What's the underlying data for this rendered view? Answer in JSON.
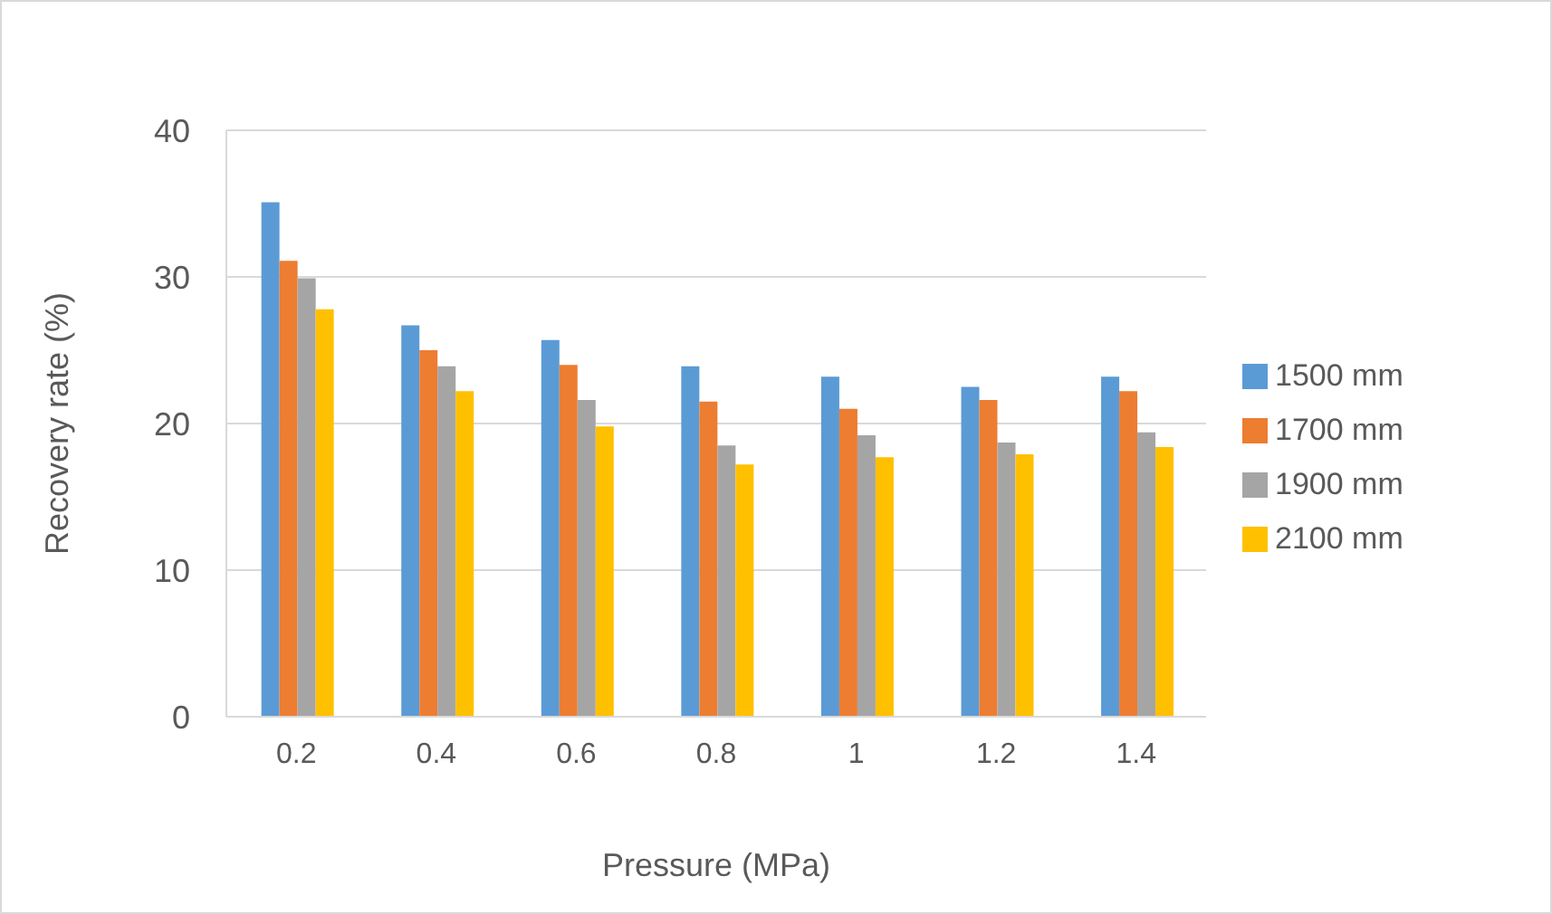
{
  "chart_data": {
    "type": "bar",
    "xlabel": "Pressure (MPa)",
    "ylabel": "Recovery rate (%)",
    "categories": [
      "0.2",
      "0.4",
      "0.6",
      "0.8",
      "1",
      "1.2",
      "1.4"
    ],
    "series": [
      {
        "name": "1500 mm",
        "color": "#5b9bd5",
        "values": [
          35.1,
          26.7,
          25.7,
          23.9,
          23.2,
          22.5,
          23.2
        ]
      },
      {
        "name": "1700 mm",
        "color": "#ed7d31",
        "values": [
          31.1,
          25.0,
          24.0,
          21.5,
          21.0,
          21.6,
          22.2
        ]
      },
      {
        "name": "1900 mm",
        "color": "#a5a5a5",
        "values": [
          29.9,
          23.9,
          21.6,
          18.5,
          19.2,
          18.7,
          19.4
        ]
      },
      {
        "name": "2100 mm",
        "color": "#ffc000",
        "values": [
          27.8,
          22.2,
          19.8,
          17.2,
          17.7,
          17.9,
          18.4
        ]
      }
    ],
    "ylim": [
      0,
      40
    ],
    "yticks": [
      0,
      10,
      20,
      30,
      40
    ],
    "grid": "y",
    "legend": "right"
  }
}
